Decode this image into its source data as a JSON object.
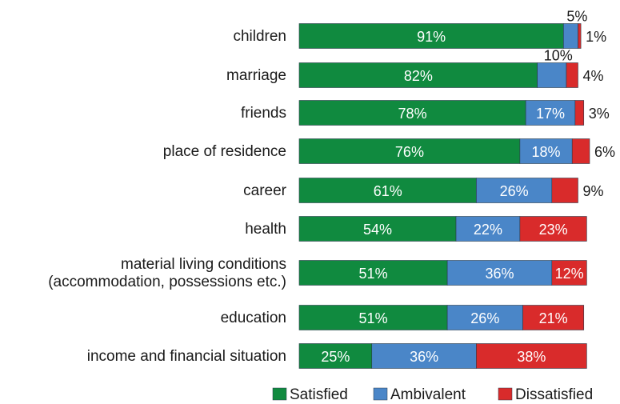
{
  "chart_data": {
    "type": "bar",
    "orientation": "horizontal",
    "stacked": true,
    "title": "",
    "xlabel": "",
    "ylabel": "",
    "xlim": [
      0,
      100
    ],
    "grid": false,
    "legend_position": "bottom",
    "categories": [
      [
        "children"
      ],
      [
        "marriage"
      ],
      [
        "friends"
      ],
      [
        "place of residence"
      ],
      [
        "career"
      ],
      [
        "health"
      ],
      [
        "material living conditions",
        "(accommodation, possessions etc.)"
      ],
      [
        "education"
      ],
      [
        "income and financial situation"
      ]
    ],
    "series": [
      {
        "name": "Satisfied",
        "color": "#108a3f",
        "values": [
          91,
          82,
          78,
          76,
          61,
          54,
          51,
          51,
          25
        ]
      },
      {
        "name": "Ambivalent",
        "color": "#4a86c8",
        "values": [
          5,
          10,
          17,
          18,
          26,
          22,
          36,
          26,
          36
        ]
      },
      {
        "name": "Dissatisfied",
        "color": "#d92b2b",
        "values": [
          1,
          4,
          3,
          6,
          9,
          23,
          12,
          21,
          38
        ]
      }
    ],
    "labels": [
      [
        "91%",
        "5%",
        "1%"
      ],
      [
        "82%",
        "10%",
        "4%"
      ],
      [
        "78%",
        "17%",
        "3%"
      ],
      [
        "76%",
        "18%",
        "6%"
      ],
      [
        "61%",
        "26%",
        "9%"
      ],
      [
        "54%",
        "22%",
        "23%"
      ],
      [
        "51%",
        "36%",
        "12%"
      ],
      [
        "51%",
        "26%",
        "21%"
      ],
      [
        "25%",
        "36%",
        "38%"
      ]
    ]
  }
}
